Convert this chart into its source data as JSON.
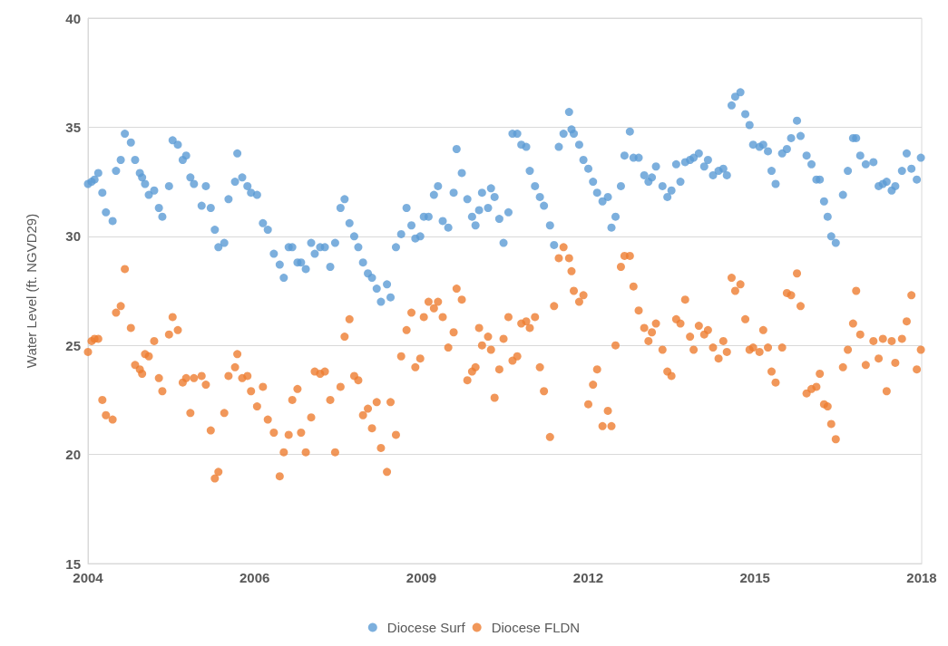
{
  "chart_data": {
    "type": "scatter",
    "ylabel": "Water Level (ft. NGVD29)",
    "x": [
      "2004-01-01",
      "2004-01-23",
      "2004-02-10",
      "2004-03-04",
      "2004-03-29",
      "2004-04-20",
      "2004-05-31",
      "2004-06-21",
      "2004-07-20",
      "2004-08-14",
      "2004-09-20",
      "2004-10-16",
      "2004-11-14",
      "2004-11-28",
      "2004-12-16",
      "2005-01-08",
      "2005-02-10",
      "2005-03-11",
      "2005-04-01",
      "2005-05-12",
      "2005-06-03",
      "2005-07-05",
      "2005-08-04",
      "2005-08-25",
      "2005-09-20",
      "2005-10-12",
      "2005-11-28",
      "2005-12-24",
      "2006-01-23",
      "2006-02-17",
      "2006-03-11",
      "2006-04-16",
      "2006-05-12",
      "2006-06-21",
      "2006-07-05",
      "2006-08-04",
      "2006-09-05",
      "2006-09-27",
      "2006-11-03",
      "2006-12-09",
      "2007-01-08",
      "2007-02-14",
      "2007-03-22",
      "2007-04-16",
      "2007-05-16",
      "2007-06-07",
      "2007-07-09",
      "2007-07-31",
      "2007-08-29",
      "2007-10-01",
      "2007-10-23",
      "2007-11-25",
      "2007-12-24",
      "2008-01-26",
      "2008-02-25",
      "2008-03-29",
      "2008-04-23",
      "2008-05-23",
      "2008-06-21",
      "2008-07-16",
      "2008-08-14",
      "2008-09-13",
      "2008-10-08",
      "2008-11-06",
      "2008-12-02",
      "2009-01-08",
      "2009-01-30",
      "2009-03-04",
      "2009-04-05",
      "2009-05-08",
      "2009-06-07",
      "2009-07-01",
      "2009-07-31",
      "2009-08-22",
      "2009-09-20",
      "2009-10-23",
      "2009-11-17",
      "2009-12-16",
      "2010-01-19",
      "2010-02-21",
      "2010-03-11",
      "2010-04-12",
      "2010-05-16",
      "2010-06-14",
      "2010-07-05",
      "2010-07-27",
      "2010-08-14",
      "2010-09-20",
      "2010-10-08",
      "2010-10-30",
      "2010-11-28",
      "2010-12-24",
      "2011-01-23",
      "2011-02-17",
      "2011-03-18",
      "2011-04-12",
      "2011-05-12",
      "2011-06-03",
      "2011-07-05",
      "2011-08-04",
      "2011-08-29",
      "2011-10-05",
      "2011-10-30",
      "2011-11-28",
      "2011-12-27",
      "2012-01-30",
      "2012-02-14",
      "2012-02-28",
      "2012-04-01",
      "2012-04-27",
      "2012-05-27",
      "2012-06-25",
      "2012-07-20",
      "2012-08-22",
      "2012-09-24",
      "2012-10-16",
      "2012-11-10",
      "2012-12-13",
      "2013-01-04",
      "2013-02-06",
      "2013-02-28",
      "2013-04-01",
      "2013-05-05",
      "2013-05-31",
      "2013-06-21",
      "2013-07-16",
      "2013-08-25",
      "2013-09-24",
      "2013-10-19",
      "2013-11-17",
      "2013-12-13",
      "2014-01-11",
      "2014-02-10",
      "2014-03-04",
      "2014-04-05",
      "2014-05-08",
      "2014-05-31",
      "2014-07-01",
      "2014-08-04",
      "2014-09-02",
      "2014-09-24",
      "2014-10-23",
      "2014-11-14",
      "2014-12-16",
      "2015-01-15",
      "2015-02-10",
      "2015-03-04",
      "2015-04-12",
      "2015-05-05",
      "2015-06-03",
      "2015-06-25",
      "2015-07-20",
      "2015-08-29",
      "2015-09-27",
      "2015-10-23",
      "2015-11-28",
      "2015-12-20",
      "2016-01-26",
      "2016-02-25",
      "2016-03-26",
      "2016-04-16",
      "2016-05-12",
      "2016-06-03",
      "2016-06-25",
      "2016-07-23",
      "2016-09-05",
      "2016-10-05",
      "2016-11-06",
      "2016-11-25",
      "2016-12-20",
      "2017-01-23",
      "2017-03-11",
      "2017-04-12",
      "2017-05-08",
      "2017-05-31",
      "2017-07-01",
      "2017-07-23",
      "2017-09-02",
      "2017-10-01",
      "2017-10-30",
      "2017-12-02",
      "2017-12-27"
    ],
    "series": [
      {
        "name": "Diocese Surf",
        "color": "#5b9bd5",
        "values": [
          32.4,
          32.5,
          32.6,
          32.9,
          32.0,
          31.1,
          30.7,
          33.0,
          33.5,
          34.7,
          34.3,
          33.5,
          32.9,
          32.7,
          32.4,
          31.9,
          32.1,
          31.3,
          30.9,
          32.3,
          34.4,
          34.2,
          33.5,
          33.7,
          32.7,
          32.4,
          31.4,
          32.3,
          31.3,
          30.3,
          29.5,
          29.7,
          31.7,
          32.5,
          33.8,
          32.7,
          32.3,
          32.0,
          31.9,
          30.6,
          30.3,
          29.2,
          28.7,
          28.1,
          29.5,
          29.5,
          28.8,
          28.8,
          28.5,
          29.7,
          29.2,
          29.5,
          29.5,
          28.6,
          29.7,
          31.3,
          31.7,
          30.6,
          30.0,
          29.5,
          28.8,
          28.3,
          28.1,
          27.6,
          27.0,
          27.8,
          27.2,
          29.5,
          30.1,
          31.3,
          30.5,
          29.9,
          30.0,
          30.9,
          30.9,
          31.9,
          32.3,
          30.7,
          30.4,
          32.0,
          34.0,
          32.9,
          31.7,
          30.9,
          30.5,
          31.2,
          32.0,
          31.3,
          32.2,
          31.8,
          30.8,
          29.7,
          31.1,
          34.7,
          34.7,
          34.2,
          34.1,
          33.0,
          32.3,
          31.8,
          31.4,
          30.5,
          29.6,
          34.1,
          34.7,
          35.7,
          34.9,
          34.7,
          34.2,
          33.5,
          33.1,
          32.5,
          32.0,
          31.6,
          31.8,
          30.4,
          30.9,
          32.3,
          33.7,
          34.8,
          33.6,
          33.6,
          32.8,
          32.5,
          32.7,
          33.2,
          32.3,
          31.8,
          32.1,
          33.3,
          32.5,
          33.4,
          33.5,
          33.6,
          33.8,
          33.2,
          33.5,
          32.8,
          33.0,
          33.1,
          32.8,
          36.0,
          36.4,
          36.6,
          35.6,
          35.1,
          34.2,
          34.1,
          34.2,
          33.9,
          33.0,
          32.4,
          33.8,
          34.0,
          34.5,
          35.3,
          34.6,
          33.7,
          33.3,
          32.6,
          32.6,
          31.6,
          30.9,
          30.0,
          29.7,
          31.9,
          33.0,
          34.5,
          34.5,
          33.7,
          33.3,
          33.4,
          32.3,
          32.4,
          32.5,
          32.1,
          32.3,
          33.0,
          33.8,
          33.1,
          32.6,
          33.6
        ]
      },
      {
        "name": "Diocese FLDN",
        "color": "#ed7d31",
        "values": [
          24.7,
          25.2,
          25.3,
          25.3,
          22.5,
          21.8,
          21.6,
          26.5,
          26.8,
          28.5,
          25.8,
          24.1,
          23.9,
          23.7,
          24.6,
          24.5,
          25.2,
          23.5,
          22.9,
          25.5,
          26.3,
          25.7,
          23.3,
          23.5,
          21.9,
          23.5,
          23.6,
          23.2,
          21.1,
          18.9,
          19.2,
          21.9,
          23.6,
          24.0,
          24.6,
          23.5,
          23.6,
          22.9,
          22.2,
          23.1,
          21.6,
          21.0,
          19.0,
          20.1,
          20.9,
          22.5,
          23.0,
          21.0,
          20.1,
          21.7,
          23.8,
          23.7,
          23.8,
          22.5,
          20.1,
          23.1,
          25.4,
          26.2,
          23.6,
          23.4,
          21.8,
          22.1,
          21.2,
          22.4,
          20.3,
          19.2,
          22.4,
          20.9,
          24.5,
          25.7,
          26.5,
          24.0,
          24.4,
          26.3,
          27.0,
          26.7,
          27.0,
          26.3,
          24.9,
          25.6,
          27.6,
          27.1,
          23.4,
          23.8,
          24.0,
          25.8,
          25.0,
          25.4,
          24.8,
          22.6,
          23.9,
          25.3,
          26.3,
          24.3,
          24.5,
          26.0,
          26.1,
          25.8,
          26.3,
          24.0,
          22.9,
          20.8,
          26.8,
          29.0,
          29.5,
          29.0,
          28.4,
          27.5,
          27.0,
          27.3,
          22.3,
          23.2,
          23.9,
          21.3,
          22.0,
          21.3,
          25.0,
          28.6,
          29.1,
          29.1,
          27.7,
          26.6,
          25.8,
          25.2,
          25.6,
          26.0,
          24.8,
          23.8,
          23.6,
          26.2,
          26.0,
          27.1,
          25.4,
          24.8,
          25.9,
          25.5,
          25.7,
          24.9,
          24.4,
          25.2,
          24.7,
          28.1,
          27.5,
          27.8,
          26.2,
          24.8,
          24.9,
          24.7,
          25.7,
          24.9,
          23.8,
          23.3,
          24.9,
          27.4,
          27.3,
          28.3,
          26.8,
          22.8,
          23.0,
          23.1,
          23.7,
          22.3,
          22.2,
          21.4,
          20.7,
          24.0,
          24.8,
          26.0,
          27.5,
          25.5,
          24.1,
          25.2,
          24.4,
          25.3,
          22.9,
          25.2,
          24.2,
          25.3,
          26.1,
          27.3,
          23.9,
          24.8
        ]
      }
    ],
    "xlim": [
      "2004-01-01",
      "2018-01-01"
    ],
    "xticks": [
      {
        "value": "2004-01-01",
        "label": "2004"
      },
      {
        "value": "2006-10-19",
        "label": "2006"
      },
      {
        "value": "2009-08-07",
        "label": "2009"
      },
      {
        "value": "2012-05-27",
        "label": "2012"
      },
      {
        "value": "2015-03-15",
        "label": "2015"
      },
      {
        "value": "2018-01-01",
        "label": "2018"
      }
    ],
    "ylim": [
      15,
      40
    ],
    "yticks": [
      15,
      20,
      25,
      30,
      35,
      40
    ],
    "grid": "y",
    "legend": "bottom",
    "marker": "circle"
  }
}
